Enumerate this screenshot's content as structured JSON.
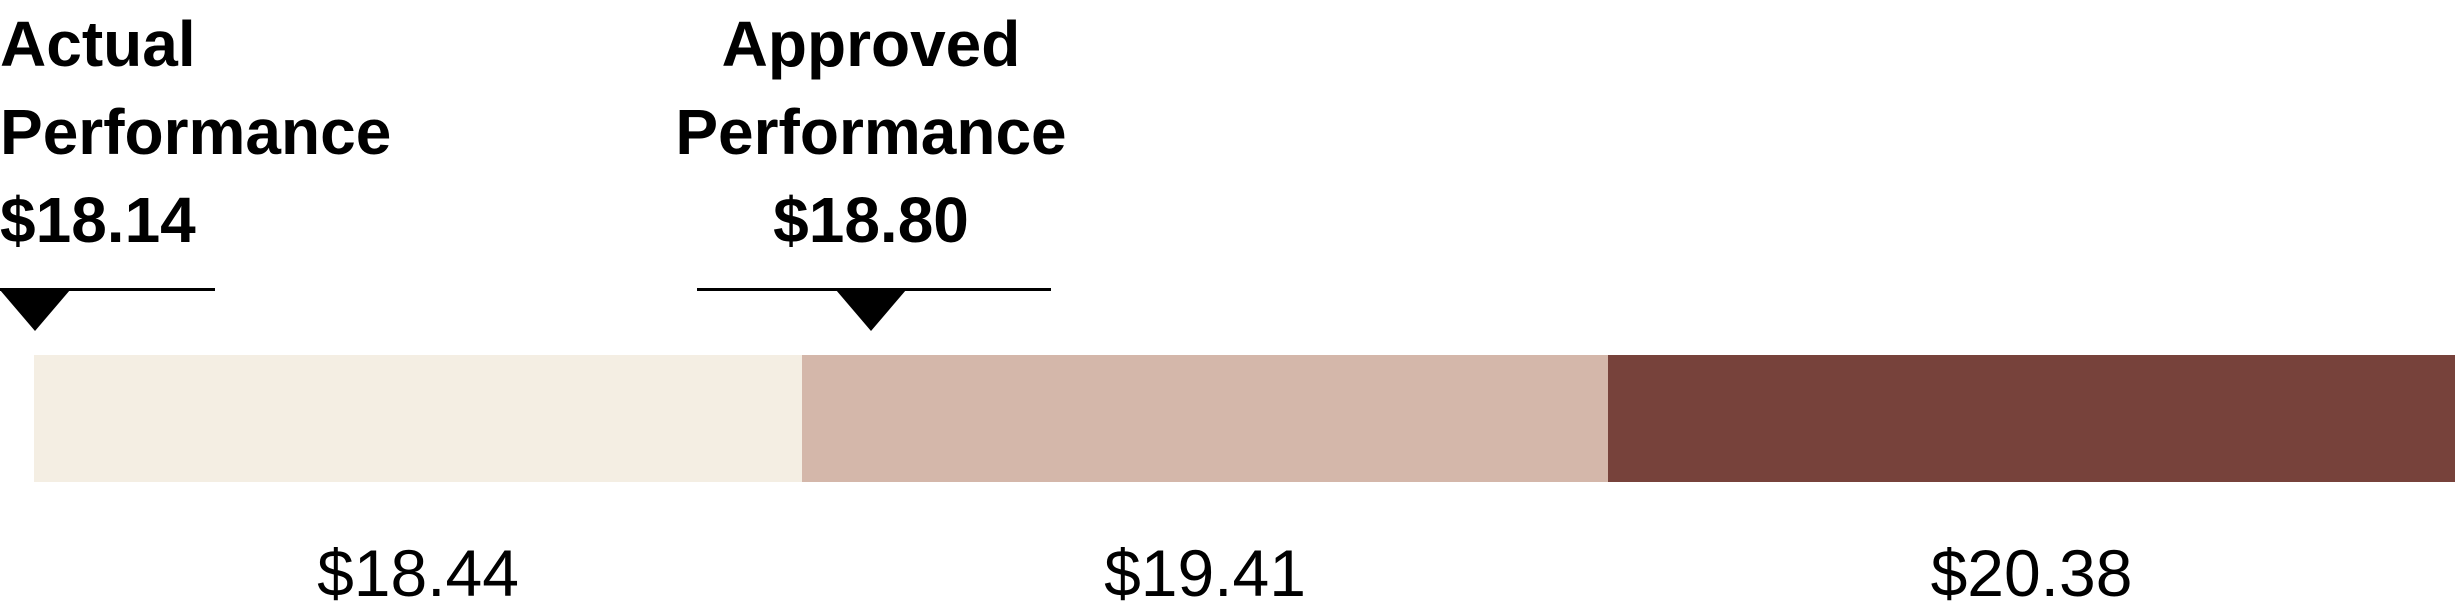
{
  "chart_data": {
    "type": "bar",
    "subtype": "bullet-range",
    "markers": [
      {
        "name": "actual",
        "lines": [
          "Actual",
          "Performance",
          "$18.14"
        ],
        "value": 18.14
      },
      {
        "name": "approved",
        "lines": [
          "Approved",
          "Performance",
          "$18.80"
        ],
        "value": 18.8
      }
    ],
    "bands": [
      {
        "label": "$18.44",
        "color": "#f4eee3"
      },
      {
        "label": "$19.41",
        "color": "#d4b7aa"
      },
      {
        "label": "$20.38",
        "color": "#77423b"
      }
    ],
    "legend": "none",
    "grid": false
  }
}
